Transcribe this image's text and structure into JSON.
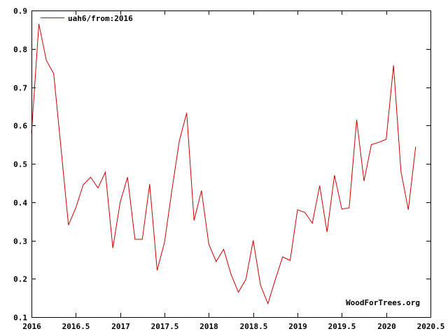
{
  "chart_data": {
    "type": "line",
    "title": "",
    "xlabel": "",
    "ylabel": "",
    "xlim": [
      2016,
      2020.5
    ],
    "ylim": [
      0.1,
      0.9
    ],
    "x_ticks": [
      2016,
      2016.5,
      2017,
      2017.5,
      2018,
      2018.5,
      2019,
      2019.5,
      2020,
      2020.5
    ],
    "x_tick_labels": [
      "2016",
      "2016.5",
      "2017",
      "2017.5",
      "2018",
      "2018.5",
      "2019",
      "2019.5",
      "2020",
      "2020.5"
    ],
    "y_ticks": [
      0.1,
      0.2,
      0.3,
      0.4,
      0.5,
      0.6,
      0.7,
      0.8,
      0.9
    ],
    "y_tick_labels": [
      "0.1",
      "0.2",
      "0.3",
      "0.4",
      "0.5",
      "0.6",
      "0.7",
      "0.8",
      "0.9"
    ],
    "grid": false,
    "legend_position": "top-left",
    "series": [
      {
        "name": "uah6/from:2016",
        "color": "#cc0000",
        "x": [
          2016.0,
          2016.083,
          2016.167,
          2016.25,
          2016.333,
          2016.417,
          2016.5,
          2016.583,
          2016.667,
          2016.75,
          2016.833,
          2016.917,
          2017.0,
          2017.083,
          2017.167,
          2017.25,
          2017.333,
          2017.417,
          2017.5,
          2017.583,
          2017.667,
          2017.75,
          2017.833,
          2017.917,
          2018.0,
          2018.083,
          2018.167,
          2018.25,
          2018.333,
          2018.417,
          2018.5,
          2018.583,
          2018.667,
          2018.75,
          2018.833,
          2018.917,
          2019.0,
          2019.083,
          2019.167,
          2019.25,
          2019.333,
          2019.417,
          2019.5,
          2019.583,
          2019.667,
          2019.75,
          2019.833,
          2019.917,
          2020.0,
          2020.083,
          2020.167,
          2020.25,
          2020.333
        ],
        "y": [
          0.58,
          0.865,
          0.77,
          0.735,
          0.54,
          0.34,
          0.385,
          0.445,
          0.465,
          0.437,
          0.478,
          0.28,
          0.4,
          0.465,
          0.303,
          0.303,
          0.447,
          0.222,
          0.295,
          0.43,
          0.56,
          0.633,
          0.352,
          0.43,
          0.29,
          0.245,
          0.277,
          0.212,
          0.165,
          0.198,
          0.3,
          0.183,
          0.135,
          0.198,
          0.257,
          0.248,
          0.38,
          0.373,
          0.345,
          0.443,
          0.322,
          0.47,
          0.382,
          0.385,
          0.615,
          0.455,
          0.55,
          0.556,
          0.564,
          0.757,
          0.48,
          0.38,
          0.545
        ]
      }
    ],
    "annotation": "WoodForTrees.org"
  }
}
